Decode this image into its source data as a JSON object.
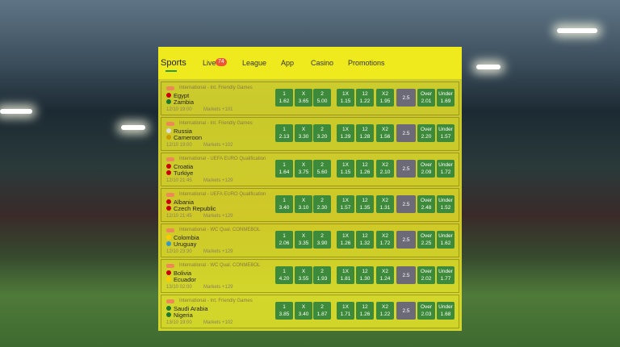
{
  "nav": {
    "sports": "Sports",
    "live": "Live",
    "live_count": "74",
    "league": "League",
    "app": "App",
    "casino": "Casino",
    "promotions": "Promotions"
  },
  "market_labels": [
    "1",
    "X",
    "2",
    "1X",
    "12",
    "X2"
  ],
  "over_label": "Over",
  "under_label": "Under",
  "matches": [
    {
      "league": "International - Int. Friendly Games",
      "team1": "Egypt",
      "team2": "Zambia",
      "time": "12/10 19:00",
      "markets": "Markets +101",
      "odds": [
        "1.62",
        "3.65",
        "5.00",
        "1.15",
        "1.22",
        "1.95"
      ],
      "total": "2.5",
      "over": "2.01",
      "under": "1.69"
    },
    {
      "league": "International - Int. Friendly Games",
      "team1": "Russia",
      "team2": "Cameroon",
      "time": "12/10 19:00",
      "markets": "Markets +102",
      "odds": [
        "2.13",
        "3.30",
        "3.20",
        "1.29",
        "1.28",
        "1.56"
      ],
      "total": "2.5",
      "over": "2.20",
      "under": "1.57"
    },
    {
      "league": "International - UEFA EURO Qualification",
      "team1": "Croatia",
      "team2": "Turkiye",
      "time": "12/10 21:45",
      "markets": "Markets +129",
      "odds": [
        "1.64",
        "3.75",
        "5.60",
        "1.15",
        "1.26",
        "2.10"
      ],
      "total": "2.5",
      "over": "2.09",
      "under": "1.72"
    },
    {
      "league": "International - UEFA EURO Qualification",
      "team1": "Albania",
      "team2": "Czech Republic",
      "time": "12/10 21:45",
      "markets": "Markets +129",
      "odds": [
        "3.40",
        "3.10",
        "2.30",
        "1.57",
        "1.35",
        "1.31"
      ],
      "total": "2.5",
      "over": "2.48",
      "under": "1.52"
    },
    {
      "league": "International - WC Qual. CONMEBOL",
      "team1": "Colombia",
      "team2": "Uruguay",
      "time": "12/10 23:30",
      "markets": "Markets +129",
      "odds": [
        "2.06",
        "3.35",
        "3.90",
        "1.26",
        "1.32",
        "1.72"
      ],
      "total": "2.5",
      "over": "2.25",
      "under": "1.62"
    },
    {
      "league": "International - WC Qual. CONMEBOL",
      "team1": "Bolivia",
      "team2": "Ecuador",
      "time": "13/10 02:00",
      "markets": "Markets +129",
      "odds": [
        "4.20",
        "3.55",
        "1.93",
        "1.81",
        "1.30",
        "1.24"
      ],
      "total": "2.5",
      "over": "2.02",
      "under": "1.77"
    },
    {
      "league": "International - Int. Friendly Games",
      "team1": "Saudi Arabia",
      "team2": "Nigeria",
      "time": "13/10 19:00",
      "markets": "Markets +102",
      "odds": [
        "3.85",
        "3.40",
        "1.87",
        "1.71",
        "1.26",
        "1.22"
      ],
      "total": "2.5",
      "over": "2.03",
      "under": "1.68"
    }
  ]
}
